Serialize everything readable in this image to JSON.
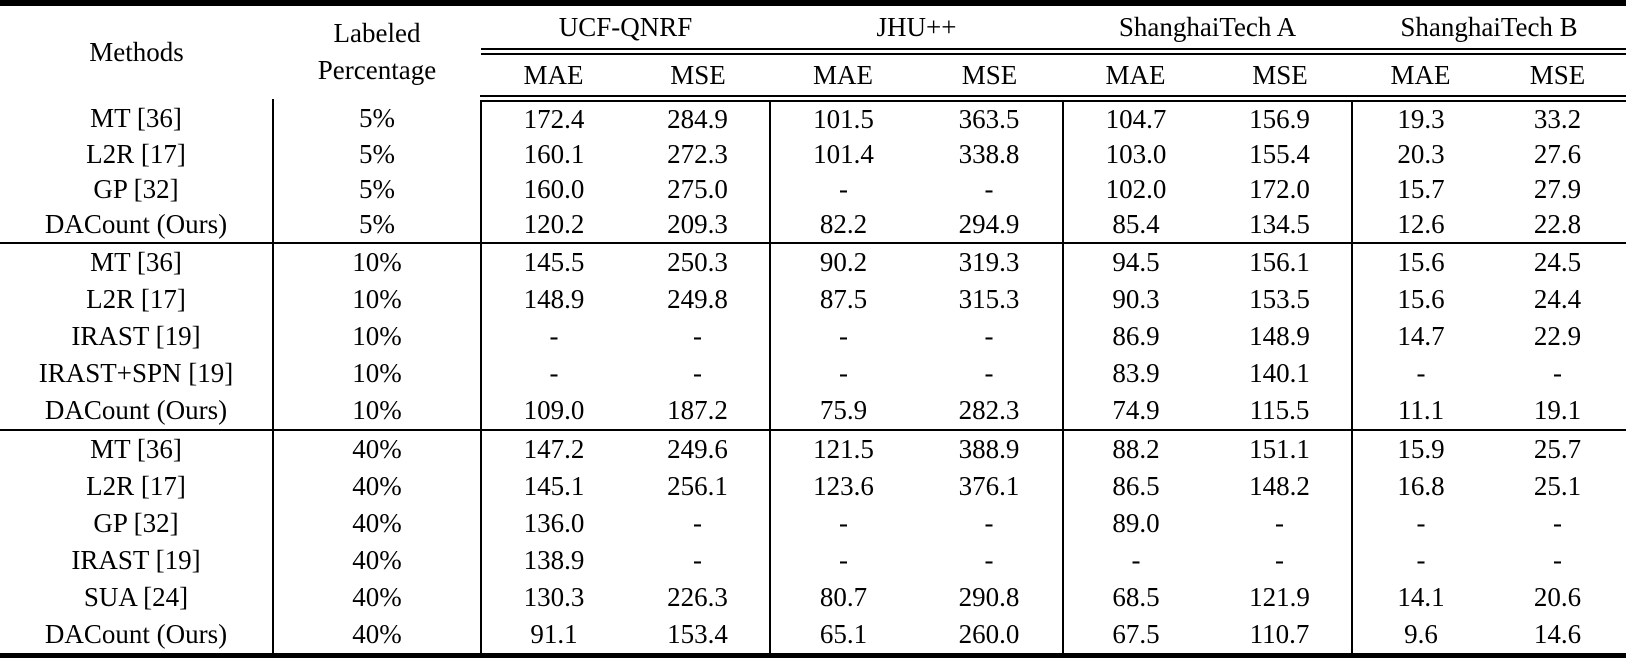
{
  "table": {
    "headers": {
      "methods": "Methods",
      "labeled_line1": "Labeled",
      "labeled_line2": "Percentage",
      "datasets": [
        {
          "name": "UCF-QNRF",
          "sub": [
            "MAE",
            "MSE"
          ]
        },
        {
          "name": "JHU++",
          "sub": [
            "MAE",
            "MSE"
          ]
        },
        {
          "name": "ShanghaiTech A",
          "sub": [
            "MAE",
            "MSE"
          ]
        },
        {
          "name": "ShanghaiTech B",
          "sub": [
            "MAE",
            "MSE"
          ]
        }
      ]
    },
    "groups": [
      {
        "labeled_percentage": "5%",
        "rows": [
          {
            "method": "MT [36]",
            "labeled_percentage": "5%",
            "bold_values": false,
            "values": [
              "172.4",
              "284.9",
              "101.5",
              "363.5",
              "104.7",
              "156.9",
              "19.3",
              "33.2"
            ]
          },
          {
            "method": "L2R [17]",
            "labeled_percentage": "5%",
            "bold_values": false,
            "values": [
              "160.1",
              "272.3",
              "101.4",
              "338.8",
              "103.0",
              "155.4",
              "20.3",
              "27.6"
            ]
          },
          {
            "method": "GP [32]",
            "labeled_percentage": "5%",
            "bold_values": false,
            "values": [
              "160.0",
              "275.0",
              "-",
              "-",
              "102.0",
              "172.0",
              "15.7",
              "27.9"
            ]
          },
          {
            "method": "DACount (Ours)",
            "labeled_percentage": "5%",
            "bold_values": true,
            "values": [
              "120.2",
              "209.3",
              "82.2",
              "294.9",
              "85.4",
              "134.5",
              "12.6",
              "22.8"
            ]
          }
        ]
      },
      {
        "labeled_percentage": "10%",
        "rows": [
          {
            "method": "MT [36]",
            "labeled_percentage": "10%",
            "bold_values": false,
            "values": [
              "145.5",
              "250.3",
              "90.2",
              "319.3",
              "94.5",
              "156.1",
              "15.6",
              "24.5"
            ]
          },
          {
            "method": "L2R [17]",
            "labeled_percentage": "10%",
            "bold_values": false,
            "values": [
              "148.9",
              "249.8",
              "87.5",
              "315.3",
              "90.3",
              "153.5",
              "15.6",
              "24.4"
            ]
          },
          {
            "method": "IRAST [19]",
            "labeled_percentage": "10%",
            "bold_values": false,
            "values": [
              "-",
              "-",
              "-",
              "-",
              "86.9",
              "148.9",
              "14.7",
              "22.9"
            ]
          },
          {
            "method": "IRAST+SPN [19]",
            "labeled_percentage": "10%",
            "bold_values": false,
            "values": [
              "-",
              "-",
              "-",
              "-",
              "83.9",
              "140.1",
              "-",
              "-"
            ]
          },
          {
            "method": "DACount (Ours)",
            "labeled_percentage": "10%",
            "bold_values": true,
            "values": [
              "109.0",
              "187.2",
              "75.9",
              "282.3",
              "74.9",
              "115.5",
              "11.1",
              "19.1"
            ]
          }
        ]
      },
      {
        "labeled_percentage": "40%",
        "rows": [
          {
            "method": "MT [36]",
            "labeled_percentage": "40%",
            "bold_values": false,
            "values": [
              "147.2",
              "249.6",
              "121.5",
              "388.9",
              "88.2",
              "151.1",
              "15.9",
              "25.7"
            ]
          },
          {
            "method": "L2R [17]",
            "labeled_percentage": "40%",
            "bold_values": false,
            "values": [
              "145.1",
              "256.1",
              "123.6",
              "376.1",
              "86.5",
              "148.2",
              "16.8",
              "25.1"
            ]
          },
          {
            "method": "GP [32]",
            "labeled_percentage": "40%",
            "bold_values": false,
            "values": [
              "136.0",
              "-",
              "-",
              "-",
              "89.0",
              "-",
              "-",
              "-"
            ]
          },
          {
            "method": "IRAST [19]",
            "labeled_percentage": "40%",
            "bold_values": false,
            "values": [
              "138.9",
              "-",
              "-",
              "-",
              "-",
              "-",
              "-",
              "-"
            ]
          },
          {
            "method": "SUA [24]",
            "labeled_percentage": "40%",
            "bold_values": false,
            "values": [
              "130.3",
              "226.3",
              "80.7",
              "290.8",
              "68.5",
              "121.9",
              "14.1",
              "20.6"
            ]
          },
          {
            "method": "DACount (Ours)",
            "labeled_percentage": "40%",
            "bold_values": true,
            "values": [
              "91.1",
              "153.4",
              "65.1",
              "260.0",
              "67.5",
              "110.7",
              "9.6",
              "14.6"
            ]
          }
        ]
      }
    ]
  }
}
